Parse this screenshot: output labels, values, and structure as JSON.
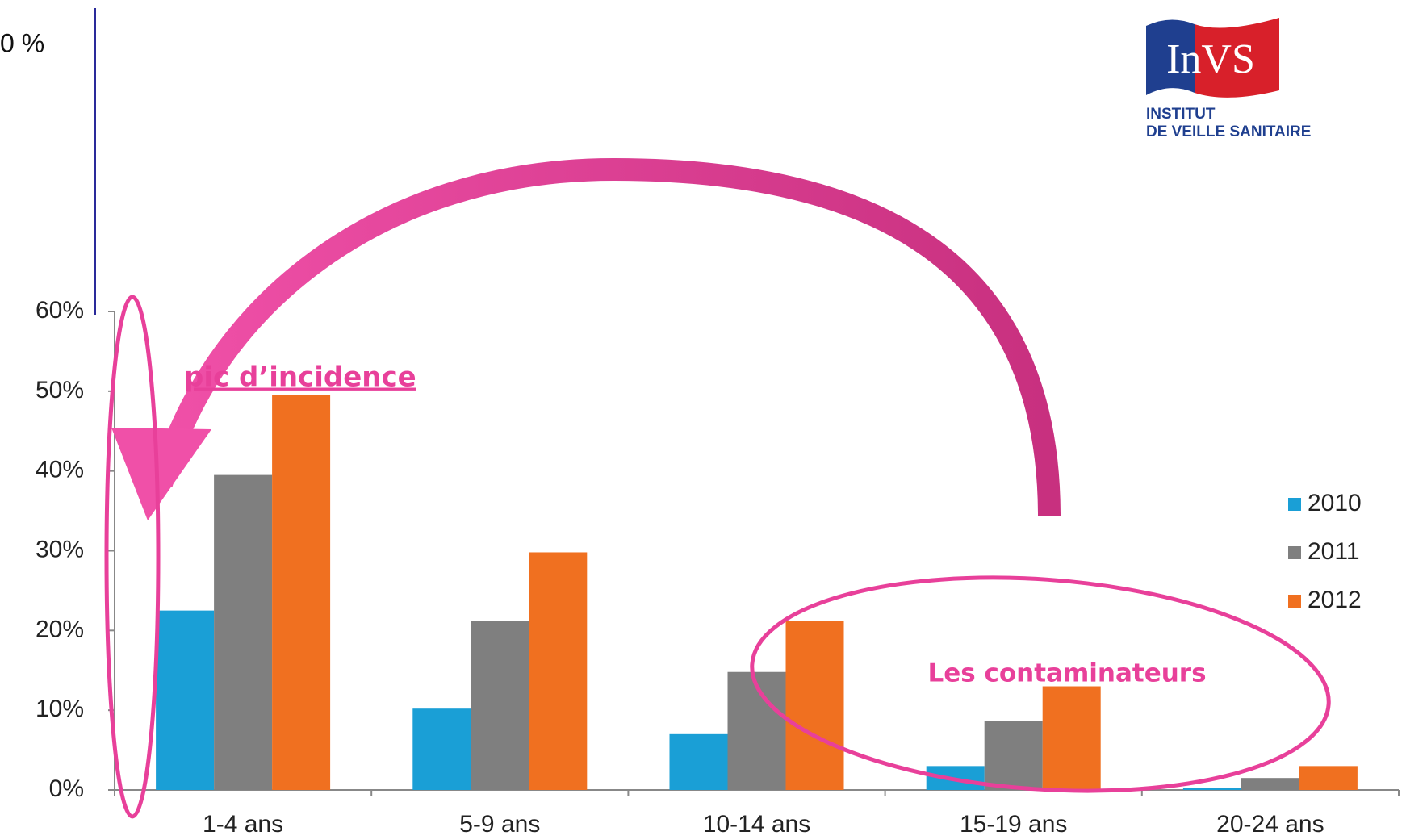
{
  "chart_data": {
    "type": "bar",
    "categories": [
      "1-4 ans",
      "5-9 ans",
      "10-14 ans",
      "15-19 ans",
      "20-24 ans"
    ],
    "series": [
      {
        "name": "2010",
        "color": "#1a9fd6",
        "values": [
          22.5,
          10.2,
          7,
          3,
          0.3
        ]
      },
      {
        "name": "2011",
        "color": "#7f7f7f",
        "values": [
          39.5,
          21.2,
          14.8,
          8.6,
          1.5
        ]
      },
      {
        "name": "2012",
        "color": "#f07020",
        "values": [
          49.5,
          29.8,
          21.2,
          13,
          3
        ]
      }
    ],
    "ylim": [
      0,
      60
    ],
    "yticks": [
      {
        "value": 0,
        "label": "0%"
      },
      {
        "value": 10,
        "label": "10%"
      },
      {
        "value": 20,
        "label": "20%"
      },
      {
        "value": 30,
        "label": "30%"
      },
      {
        "value": 40,
        "label": "40%"
      },
      {
        "value": 50,
        "label": "50%"
      },
      {
        "value": 60,
        "label": "60%"
      }
    ],
    "grid": false,
    "legend": "right",
    "annotations": [
      "pic d’incidence",
      "Les contaminateurs"
    ]
  },
  "fragment": "0 %",
  "logo": {
    "name": "InVS",
    "line1": "INSTITUT",
    "line2": "DE VEILLE SANITAIRE"
  }
}
